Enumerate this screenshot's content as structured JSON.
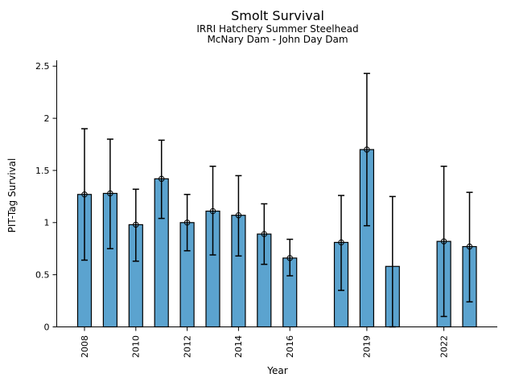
{
  "chart_data": {
    "type": "bar",
    "title": "Smolt Survival",
    "subtitle_line1": "IRRI Hatchery Summer Steelhead",
    "subtitle_line2": "McNary Dam - John Day Dam",
    "xlabel": "Year",
    "ylabel": "PIT-Tag Survival",
    "ylim": [
      0,
      2.5
    ],
    "yticks": [
      0,
      0.5,
      1,
      1.5,
      2,
      2.5
    ],
    "ytick_labels": [
      "0",
      "0.5",
      "1",
      "1.5",
      "2",
      "2.5"
    ],
    "xtick_years": [
      2008,
      2010,
      2012,
      2014,
      2016,
      2019,
      2022
    ],
    "x_range_years": [
      2008,
      2023
    ],
    "grid": false,
    "legend": "none",
    "error_bars": true,
    "marker_style": "open-circle",
    "colors": {
      "bar_fill": "#5ba3cf",
      "bar_edge": "#000000",
      "error_bar": "#000000",
      "marker_edge": "#000000",
      "background": "#ffffff"
    },
    "bars": [
      {
        "year": 2008,
        "value": 1.27,
        "ci_low": 0.64,
        "ci_high": 1.9,
        "marker": true
      },
      {
        "year": 2009,
        "value": 1.28,
        "ci_low": 0.75,
        "ci_high": 1.8,
        "marker": true
      },
      {
        "year": 2010,
        "value": 0.98,
        "ci_low": 0.63,
        "ci_high": 1.32,
        "marker": true
      },
      {
        "year": 2011,
        "value": 1.42,
        "ci_low": 1.04,
        "ci_high": 1.79,
        "marker": true
      },
      {
        "year": 2012,
        "value": 1.0,
        "ci_low": 0.73,
        "ci_high": 1.27,
        "marker": true
      },
      {
        "year": 2013,
        "value": 1.11,
        "ci_low": 0.69,
        "ci_high": 1.54,
        "marker": true
      },
      {
        "year": 2014,
        "value": 1.07,
        "ci_low": 0.68,
        "ci_high": 1.45,
        "marker": true
      },
      {
        "year": 2015,
        "value": 0.89,
        "ci_low": 0.6,
        "ci_high": 1.18,
        "marker": true
      },
      {
        "year": 2016,
        "value": 0.66,
        "ci_low": 0.49,
        "ci_high": 0.84,
        "marker": true
      },
      {
        "year": 2018,
        "value": 0.81,
        "ci_low": 0.35,
        "ci_high": 1.26,
        "marker": true
      },
      {
        "year": 2019,
        "value": 1.7,
        "ci_low": 0.97,
        "ci_high": 2.43,
        "marker": true
      },
      {
        "year": 2020,
        "value": 0.58,
        "ci_low": 0.0,
        "ci_high": 1.25,
        "marker": false
      },
      {
        "year": 2022,
        "value": 0.82,
        "ci_low": 0.1,
        "ci_high": 1.54,
        "marker": true
      },
      {
        "year": 2023,
        "value": 0.77,
        "ci_low": 0.24,
        "ci_high": 1.29,
        "marker": true
      }
    ]
  }
}
